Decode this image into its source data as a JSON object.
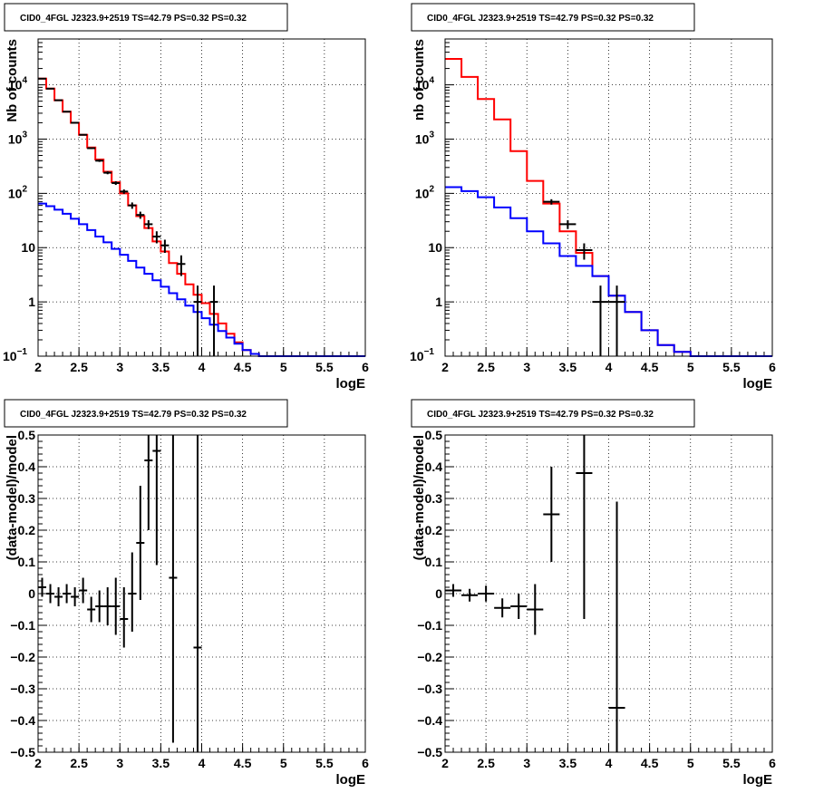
{
  "chart_data": [
    {
      "id": "top-left",
      "type": "line",
      "title": "CID0_4FGL J2323.9+2519 TS=42.79 PS=0.32 PS=0.32",
      "xlabel": "logE",
      "ylabel": "Nb of counts",
      "xlim": [
        2,
        6
      ],
      "ylim": [
        0.1,
        70000
      ],
      "yscale": "log",
      "grid": true,
      "xticks": [
        "2",
        "2.5",
        "3",
        "3.5",
        "4",
        "4.5",
        "5",
        "5.5",
        "6"
      ],
      "yticks": [
        {
          "v": 0.1,
          "label": "10",
          "sup": "−1"
        },
        {
          "v": 1,
          "label": "1",
          "sup": ""
        },
        {
          "v": 10,
          "label": "10",
          "sup": ""
        },
        {
          "v": 100,
          "label": "10",
          "sup": "2"
        },
        {
          "v": 1000,
          "label": "10",
          "sup": "3"
        },
        {
          "v": 10000,
          "label": "10",
          "sup": "4"
        }
      ],
      "series": [
        {
          "color": "#ff0000",
          "kind": "step",
          "bin_edges": [
            2.0,
            2.1,
            2.2,
            2.3,
            2.4,
            2.5,
            2.6,
            2.7,
            2.8,
            2.9,
            3.0,
            3.1,
            3.2,
            3.3,
            3.4,
            3.5,
            3.6,
            3.7,
            3.8,
            3.9,
            4.0,
            4.1,
            4.2,
            4.3,
            4.4,
            4.5,
            4.6,
            4.7,
            4.8,
            4.9,
            5.0,
            5.1,
            5.2,
            5.3,
            5.4,
            5.5,
            5.6,
            5.7,
            5.8,
            5.9,
            6.0
          ],
          "values": [
            13000,
            8500,
            5200,
            3200,
            2000,
            1200,
            700,
            420,
            250,
            160,
            100,
            60,
            38,
            23,
            13,
            8.5,
            5.2,
            3.3,
            2.1,
            1.35,
            0.95,
            0.6,
            0.4,
            0.26,
            0.18,
            0.13,
            0.11,
            0.1,
            0.1,
            0.1,
            0.1,
            0.1,
            0.1,
            0.1,
            0.1,
            0.1,
            0.1,
            0.1,
            0.1,
            0.1
          ]
        },
        {
          "color": "#0000ff",
          "kind": "step",
          "bin_edges": [
            2.0,
            2.1,
            2.2,
            2.3,
            2.4,
            2.5,
            2.6,
            2.7,
            2.8,
            2.9,
            3.0,
            3.1,
            3.2,
            3.3,
            3.4,
            3.5,
            3.6,
            3.7,
            3.8,
            3.9,
            4.0,
            4.1,
            4.2,
            4.3,
            4.4,
            4.5,
            4.6,
            4.7,
            4.8,
            4.9,
            5.0,
            5.1,
            5.2,
            5.3,
            5.4,
            5.5,
            5.6,
            5.7,
            5.8,
            5.9,
            6.0
          ],
          "values": [
            65,
            58,
            50,
            42,
            34,
            27,
            21,
            16,
            12.5,
            9.5,
            7.4,
            5.7,
            4.3,
            3.3,
            2.5,
            1.9,
            1.45,
            1.12,
            0.85,
            0.65,
            0.5,
            0.38,
            0.29,
            0.22,
            0.17,
            0.13,
            0.11,
            0.1,
            0.1,
            0.1,
            0.1,
            0.1,
            0.1,
            0.1,
            0.1,
            0.1,
            0.1,
            0.1,
            0.1,
            0.1
          ]
        },
        {
          "color": "#000000",
          "kind": "points",
          "points": [
            {
              "x": 2.05,
              "y": 13000,
              "xerr": 0.05,
              "ylo": 12900,
              "yhi": 13100
            },
            {
              "x": 2.15,
              "y": 8500,
              "xerr": 0.05,
              "ylo": 8400,
              "yhi": 8600
            },
            {
              "x": 2.25,
              "y": 5200,
              "xerr": 0.05,
              "ylo": 5130,
              "yhi": 5270
            },
            {
              "x": 2.35,
              "y": 3200,
              "xerr": 0.05,
              "ylo": 3140,
              "yhi": 3260
            },
            {
              "x": 2.45,
              "y": 2000,
              "xerr": 0.05,
              "ylo": 1955,
              "yhi": 2045
            },
            {
              "x": 2.55,
              "y": 1200,
              "xerr": 0.05,
              "ylo": 1165,
              "yhi": 1235
            },
            {
              "x": 2.65,
              "y": 680,
              "xerr": 0.05,
              "ylo": 654,
              "yhi": 706
            },
            {
              "x": 2.75,
              "y": 400,
              "xerr": 0.05,
              "ylo": 380,
              "yhi": 420
            },
            {
              "x": 2.85,
              "y": 240,
              "xerr": 0.05,
              "ylo": 225,
              "yhi": 255
            },
            {
              "x": 2.95,
              "y": 155,
              "xerr": 0.05,
              "ylo": 143,
              "yhi": 167
            },
            {
              "x": 3.05,
              "y": 108,
              "xerr": 0.05,
              "ylo": 98,
              "yhi": 118
            },
            {
              "x": 3.15,
              "y": 60,
              "xerr": 0.05,
              "ylo": 52,
              "yhi": 68
            },
            {
              "x": 3.25,
              "y": 40,
              "xerr": 0.05,
              "ylo": 34,
              "yhi": 46
            },
            {
              "x": 3.35,
              "y": 27,
              "xerr": 0.05,
              "ylo": 22,
              "yhi": 32
            },
            {
              "x": 3.45,
              "y": 16,
              "xerr": 0.05,
              "ylo": 12,
              "yhi": 20
            },
            {
              "x": 3.55,
              "y": 11,
              "xerr": 0.05,
              "ylo": 8,
              "yhi": 14
            },
            {
              "x": 3.75,
              "y": 5,
              "xerr": 0.05,
              "ylo": 3,
              "yhi": 7.2
            },
            {
              "x": 3.95,
              "y": 1,
              "xerr": 0.05,
              "ylo": 0.1,
              "yhi": 2
            },
            {
              "x": 4.15,
              "y": 1,
              "xerr": 0.05,
              "ylo": 0.1,
              "yhi": 2
            }
          ]
        }
      ]
    },
    {
      "id": "top-right",
      "type": "line",
      "title": "CID0_4FGL J2323.9+2519 TS=42.79 PS=0.32 PS=0.32",
      "xlabel": "logE",
      "ylabel": "nb of counts",
      "xlim": [
        2,
        6
      ],
      "ylim": [
        0.1,
        70000
      ],
      "yscale": "log",
      "grid": true,
      "xticks": [
        "2",
        "2.5",
        "3",
        "3.5",
        "4",
        "4.5",
        "5",
        "5.5",
        "6"
      ],
      "yticks": [
        {
          "v": 0.1,
          "label": "10",
          "sup": "−1"
        },
        {
          "v": 1,
          "label": "1",
          "sup": ""
        },
        {
          "v": 10,
          "label": "10",
          "sup": ""
        },
        {
          "v": 100,
          "label": "10",
          "sup": "2"
        },
        {
          "v": 1000,
          "label": "10",
          "sup": "3"
        },
        {
          "v": 10000,
          "label": "10",
          "sup": "4"
        }
      ],
      "series": [
        {
          "color": "#ff0000",
          "kind": "step",
          "bin_edges": [
            2.0,
            2.2,
            2.4,
            2.6,
            2.8,
            3.0,
            3.2,
            3.4,
            3.6,
            3.8,
            4.0,
            4.2,
            4.4,
            4.6,
            4.8,
            5.0,
            5.2,
            5.4,
            5.6,
            5.8,
            6.0
          ],
          "values": [
            30000,
            14000,
            5500,
            2300,
            600,
            170,
            65,
            20,
            8,
            3,
            1.3,
            0.65,
            0.3,
            0.16,
            0.12,
            0.1,
            0.1,
            0.1,
            0.1,
            0.1
          ]
        },
        {
          "color": "#0000ff",
          "kind": "step",
          "bin_edges": [
            2.0,
            2.2,
            2.4,
            2.6,
            2.8,
            3.0,
            3.2,
            3.4,
            3.6,
            3.8,
            4.0,
            4.2,
            4.4,
            4.6,
            4.8,
            5.0,
            5.2,
            5.4,
            5.6,
            5.8,
            6.0
          ],
          "values": [
            130,
            110,
            85,
            55,
            35,
            20,
            12,
            7,
            4.6,
            3,
            1.3,
            0.65,
            0.3,
            0.16,
            0.12,
            0.1,
            0.1,
            0.1,
            0.1,
            0.1
          ]
        },
        {
          "color": "#000000",
          "kind": "points",
          "points": [
            {
              "x": 3.3,
              "y": 70,
              "xerr": 0.1,
              "ylo": 62,
              "yhi": 78
            },
            {
              "x": 3.5,
              "y": 27,
              "xerr": 0.1,
              "ylo": 22,
              "yhi": 32
            },
            {
              "x": 3.7,
              "y": 9,
              "xerr": 0.1,
              "ylo": 6,
              "yhi": 12
            },
            {
              "x": 3.9,
              "y": 1,
              "xerr": 0.1,
              "ylo": 0.1,
              "yhi": 2
            },
            {
              "x": 4.1,
              "y": 1,
              "xerr": 0.1,
              "ylo": 0.1,
              "yhi": 2
            }
          ]
        }
      ]
    },
    {
      "id": "bottom-left",
      "type": "scatter",
      "title": "CID0_4FGL J2323.9+2519 TS=42.79 PS=0.32 PS=0.32",
      "xlabel": "logE",
      "ylabel": "(data-model)/model",
      "xlim": [
        2,
        6
      ],
      "ylim": [
        -0.5,
        0.5
      ],
      "yscale": "linear",
      "grid": true,
      "xticks": [
        "2",
        "2.5",
        "3",
        "3.5",
        "4",
        "4.5",
        "5",
        "5.5",
        "6"
      ],
      "yticks": [
        {
          "v": -0.5,
          "label": "−0.5",
          "sup": ""
        },
        {
          "v": -0.4,
          "label": "−0.4",
          "sup": ""
        },
        {
          "v": -0.3,
          "label": "−0.3",
          "sup": ""
        },
        {
          "v": -0.2,
          "label": "−0.2",
          "sup": ""
        },
        {
          "v": -0.1,
          "label": "−0.1",
          "sup": ""
        },
        {
          "v": 0,
          "label": "0",
          "sup": ""
        },
        {
          "v": 0.1,
          "label": "0.1",
          "sup": ""
        },
        {
          "v": 0.2,
          "label": "0.2",
          "sup": ""
        },
        {
          "v": 0.3,
          "label": "0.3",
          "sup": ""
        },
        {
          "v": 0.4,
          "label": "0.4",
          "sup": ""
        },
        {
          "v": 0.5,
          "label": "0.5",
          "sup": ""
        }
      ],
      "series": [
        {
          "color": "#000000",
          "kind": "points",
          "points": [
            {
              "x": 2.05,
              "y": 0.02,
              "xerr": 0.05,
              "ylo": -0.01,
              "yhi": 0.05
            },
            {
              "x": 2.15,
              "y": 0.0,
              "xerr": 0.05,
              "ylo": -0.03,
              "yhi": 0.03
            },
            {
              "x": 2.25,
              "y": -0.01,
              "xerr": 0.05,
              "ylo": -0.04,
              "yhi": 0.02
            },
            {
              "x": 2.35,
              "y": 0.0,
              "xerr": 0.05,
              "ylo": -0.03,
              "yhi": 0.03
            },
            {
              "x": 2.45,
              "y": -0.01,
              "xerr": 0.05,
              "ylo": -0.04,
              "yhi": 0.02
            },
            {
              "x": 2.55,
              "y": 0.01,
              "xerr": 0.05,
              "ylo": -0.03,
              "yhi": 0.05
            },
            {
              "x": 2.65,
              "y": -0.05,
              "xerr": 0.05,
              "ylo": -0.09,
              "yhi": -0.01
            },
            {
              "x": 2.75,
              "y": -0.04,
              "xerr": 0.05,
              "ylo": -0.09,
              "yhi": 0.01
            },
            {
              "x": 2.85,
              "y": -0.04,
              "xerr": 0.05,
              "ylo": -0.1,
              "yhi": 0.02
            },
            {
              "x": 2.95,
              "y": -0.04,
              "xerr": 0.05,
              "ylo": -0.13,
              "yhi": 0.05
            },
            {
              "x": 3.05,
              "y": -0.08,
              "xerr": 0.05,
              "ylo": -0.17,
              "yhi": 0.02
            },
            {
              "x": 3.15,
              "y": 0.0,
              "xerr": 0.05,
              "ylo": -0.12,
              "yhi": 0.13
            },
            {
              "x": 3.25,
              "y": 0.16,
              "xerr": 0.05,
              "ylo": -0.02,
              "yhi": 0.34
            },
            {
              "x": 3.35,
              "y": 0.42,
              "xerr": 0.05,
              "ylo": 0.2,
              "yhi": 0.5
            },
            {
              "x": 3.45,
              "y": 0.45,
              "xerr": 0.05,
              "ylo": 0.09,
              "yhi": 0.5
            },
            {
              "x": 3.65,
              "y": 0.05,
              "xerr": 0.05,
              "ylo": -0.47,
              "yhi": 0.5
            },
            {
              "x": 3.95,
              "y": -0.17,
              "xerr": 0.05,
              "ylo": -0.5,
              "yhi": 0.5
            }
          ]
        }
      ]
    },
    {
      "id": "bottom-right",
      "type": "scatter",
      "title": "CID0_4FGL J2323.9+2519 TS=42.79 PS=0.32 PS=0.32",
      "xlabel": "logE",
      "ylabel": "(data-model)/model",
      "xlim": [
        2,
        6
      ],
      "ylim": [
        -0.5,
        0.5
      ],
      "yscale": "linear",
      "grid": true,
      "xticks": [
        "2",
        "2.5",
        "3",
        "3.5",
        "4",
        "4.5",
        "5",
        "5.5",
        "6"
      ],
      "yticks": [
        {
          "v": -0.5,
          "label": "−0.5",
          "sup": ""
        },
        {
          "v": -0.4,
          "label": "−0.4",
          "sup": ""
        },
        {
          "v": -0.3,
          "label": "−0.3",
          "sup": ""
        },
        {
          "v": -0.2,
          "label": "−0.2",
          "sup": ""
        },
        {
          "v": -0.1,
          "label": "−0.1",
          "sup": ""
        },
        {
          "v": 0,
          "label": "0",
          "sup": ""
        },
        {
          "v": 0.1,
          "label": "0.1",
          "sup": ""
        },
        {
          "v": 0.2,
          "label": "0.2",
          "sup": ""
        },
        {
          "v": 0.3,
          "label": "0.3",
          "sup": ""
        },
        {
          "v": 0.4,
          "label": "0.4",
          "sup": ""
        },
        {
          "v": 0.5,
          "label": "0.5",
          "sup": ""
        }
      ],
      "series": [
        {
          "color": "#000000",
          "kind": "points",
          "points": [
            {
              "x": 2.1,
              "y": 0.01,
              "xerr": 0.1,
              "ylo": -0.01,
              "yhi": 0.03
            },
            {
              "x": 2.3,
              "y": -0.005,
              "xerr": 0.1,
              "ylo": -0.025,
              "yhi": 0.015
            },
            {
              "x": 2.5,
              "y": 0.0,
              "xerr": 0.1,
              "ylo": -0.025,
              "yhi": 0.025
            },
            {
              "x": 2.7,
              "y": -0.045,
              "xerr": 0.1,
              "ylo": -0.075,
              "yhi": -0.015
            },
            {
              "x": 2.9,
              "y": -0.04,
              "xerr": 0.1,
              "ylo": -0.08,
              "yhi": 0.0
            },
            {
              "x": 3.1,
              "y": -0.05,
              "xerr": 0.1,
              "ylo": -0.13,
              "yhi": 0.03
            },
            {
              "x": 3.3,
              "y": 0.25,
              "xerr": 0.1,
              "ylo": 0.1,
              "yhi": 0.4
            },
            {
              "x": 3.7,
              "y": 0.38,
              "xerr": 0.1,
              "ylo": -0.08,
              "yhi": 0.5
            },
            {
              "x": 4.1,
              "y": -0.36,
              "xerr": 0.1,
              "ylo": -0.5,
              "yhi": 0.29
            }
          ]
        }
      ]
    }
  ]
}
